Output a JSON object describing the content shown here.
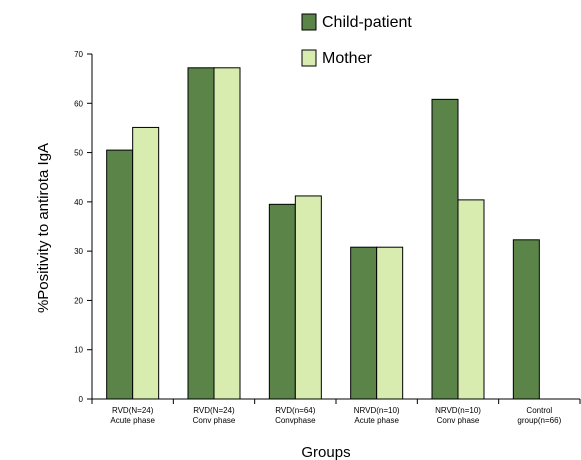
{
  "chart_data": {
    "type": "bar",
    "title": "",
    "xlabel": "Groups",
    "ylabel": "%Positivity to antirota IgA",
    "ylim": [
      0,
      70
    ],
    "yticks": [
      0,
      10,
      20,
      30,
      40,
      50,
      60,
      70
    ],
    "grid": false,
    "legend_position": "top",
    "categories": [
      [
        "RVD(N=24)",
        "Acute phase"
      ],
      [
        "RVD(N=24)",
        "Conv phase"
      ],
      [
        "RVD(n=64)",
        "Convphase"
      ],
      [
        "NRVD(n=10)",
        "Acute phase"
      ],
      [
        "NRVD(n=10)",
        "Conv phase"
      ],
      [
        "Control",
        "group(n=66)"
      ]
    ],
    "series": [
      {
        "name": "Child-patient",
        "color": "#5a8448",
        "values": [
          50.5,
          67.2,
          39.5,
          30.8,
          60.8,
          32.3
        ]
      },
      {
        "name": "Mother",
        "color": "#d8ecb0",
        "values": [
          55.1,
          67.2,
          41.2,
          30.8,
          40.4,
          null
        ]
      }
    ]
  }
}
